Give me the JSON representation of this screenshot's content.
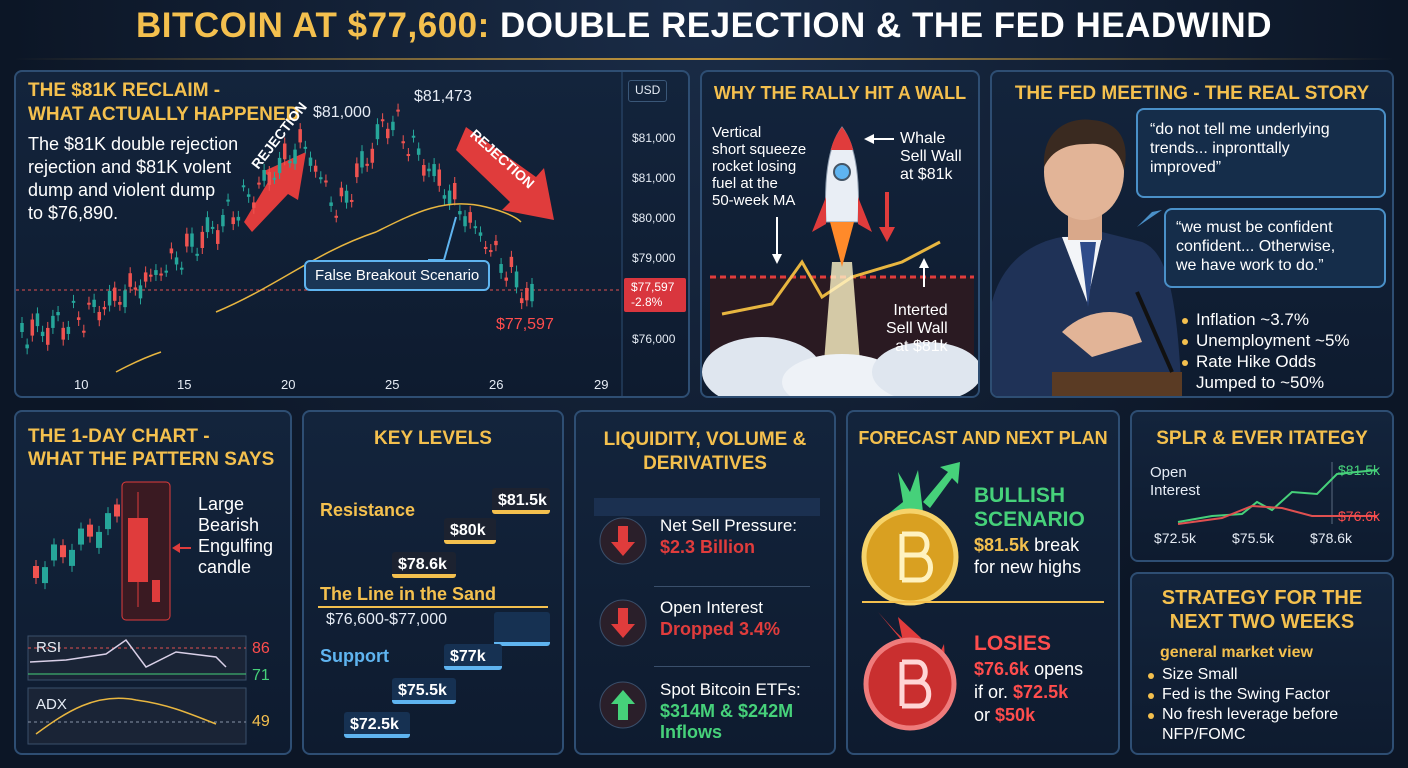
{
  "header": {
    "title_highlight": "BITCOIN AT $77,600:",
    "title_rest": "DOUBLE REJECTION & THE FED HEADWIND"
  },
  "reclaim": {
    "heading": [
      "THE $81K RECLAIM -",
      "WHAT ACTUALLY HAPPENED"
    ],
    "body": [
      "The $81K double rejection",
      "rejection and $81K volent",
      "dump and violent dump",
      "to $76,890."
    ],
    "peak_labels": [
      "$81,000",
      "$81,473"
    ],
    "rejection_labels": [
      "REJECTION",
      "REJECTION"
    ],
    "callout": "False Breakout Scenario",
    "last_price": "$77,597",
    "axis_currency": "USD",
    "price_ticks": [
      "$81,000",
      "$81,000",
      "$80,000",
      "$79,000",
      "$76,000"
    ],
    "price_tag": "$77,597",
    "price_change": "-2.8%",
    "date_ticks": [
      "10",
      "15",
      "20",
      "25",
      "26",
      "29"
    ]
  },
  "wall": {
    "heading": "WHY THE RALLY HIT A WALL",
    "rocket_note": [
      "Vertical",
      "short squeeze",
      "rocket losing",
      "fuel at the",
      "50-week MA"
    ],
    "whale": [
      "Whale",
      "Sell Wall",
      "at $81k"
    ],
    "inverted": [
      "Interted",
      "Sell Wall",
      "at $81k"
    ]
  },
  "fed": {
    "heading": "THE FED MEETING - THE REAL STORY",
    "quote1": [
      "“do not tell me underlying",
      "trends... inpronttally",
      "improved”"
    ],
    "quote2": [
      "“we must be confident",
      "confident... Otherwise,",
      "we have work to do.”"
    ],
    "bullets": [
      [
        "Inflation ~3.7%"
      ],
      [
        "Unemployment ~5%"
      ],
      [
        "Rate Hike Odds",
        "Jumped to ~50%"
      ]
    ]
  },
  "daily": {
    "heading": [
      "THE 1-DAY CHART -",
      "WHAT THE PATTERN SAYS"
    ],
    "pattern": [
      "Large",
      "Bearish",
      "Engulfing",
      "candle"
    ],
    "rsi_label": "RSI",
    "rsi_levels": [
      "86",
      "71"
    ],
    "adx_label": "ADX",
    "adx_level": "49"
  },
  "levels": {
    "heading": "KEY LEVELS",
    "resistance_label": "Resistance",
    "resistance": [
      "$81.5k",
      "$80k",
      "$78.6k"
    ],
    "line_label": "The Line in the Sand",
    "line_range": "$76,600-$77,000",
    "support_label": "Support",
    "support": [
      "$77k",
      "$75.5k",
      "$72.5k"
    ]
  },
  "liquidity": {
    "heading": [
      "LIQUIDITY, VOLUME &",
      "DERIVATIVES"
    ],
    "items": [
      {
        "label": "Net Sell Pressure:",
        "value": [
          "$2.3 Billion"
        ]
      },
      {
        "label": "Open Interest",
        "value": [
          "Dropped 3.4%"
        ]
      },
      {
        "label": "Spot Bitcoin ETFs:",
        "value": [
          "$314M & $242M",
          "Inflows"
        ]
      }
    ]
  },
  "forecast": {
    "heading": "FORECAST AND NEXT PLAN",
    "bull_title": [
      "BULLISH",
      "SCENARIO"
    ],
    "bull_level": "$81.5k",
    "bull_text": [
      "break",
      "for new highs"
    ],
    "bear_title": "LOSIES",
    "bear_level1": "$76.6k",
    "bear_text1": "opens",
    "bear_text2": "if or.",
    "bear_level2": "$72.5k",
    "bear_text3": "or",
    "bear_level3": "$50k"
  },
  "oi": {
    "heading": "SPLR & EVER ITATEGY",
    "label": [
      "Open",
      "Interest"
    ],
    "upper": "$81.5k",
    "lower": "$76.6k",
    "x_ticks": [
      "$72.5k",
      "$75.5k",
      "$78.6k"
    ]
  },
  "strategy": {
    "heading": [
      "STRATEGY FOR THE",
      "NEXT TWO WEEKS"
    ],
    "subheading": "general market view",
    "bullets": [
      [
        "Size Small"
      ],
      [
        "Fed is the Swing Factor"
      ],
      [
        "No fresh leverage before",
        "NFP/FOMC"
      ]
    ]
  }
}
